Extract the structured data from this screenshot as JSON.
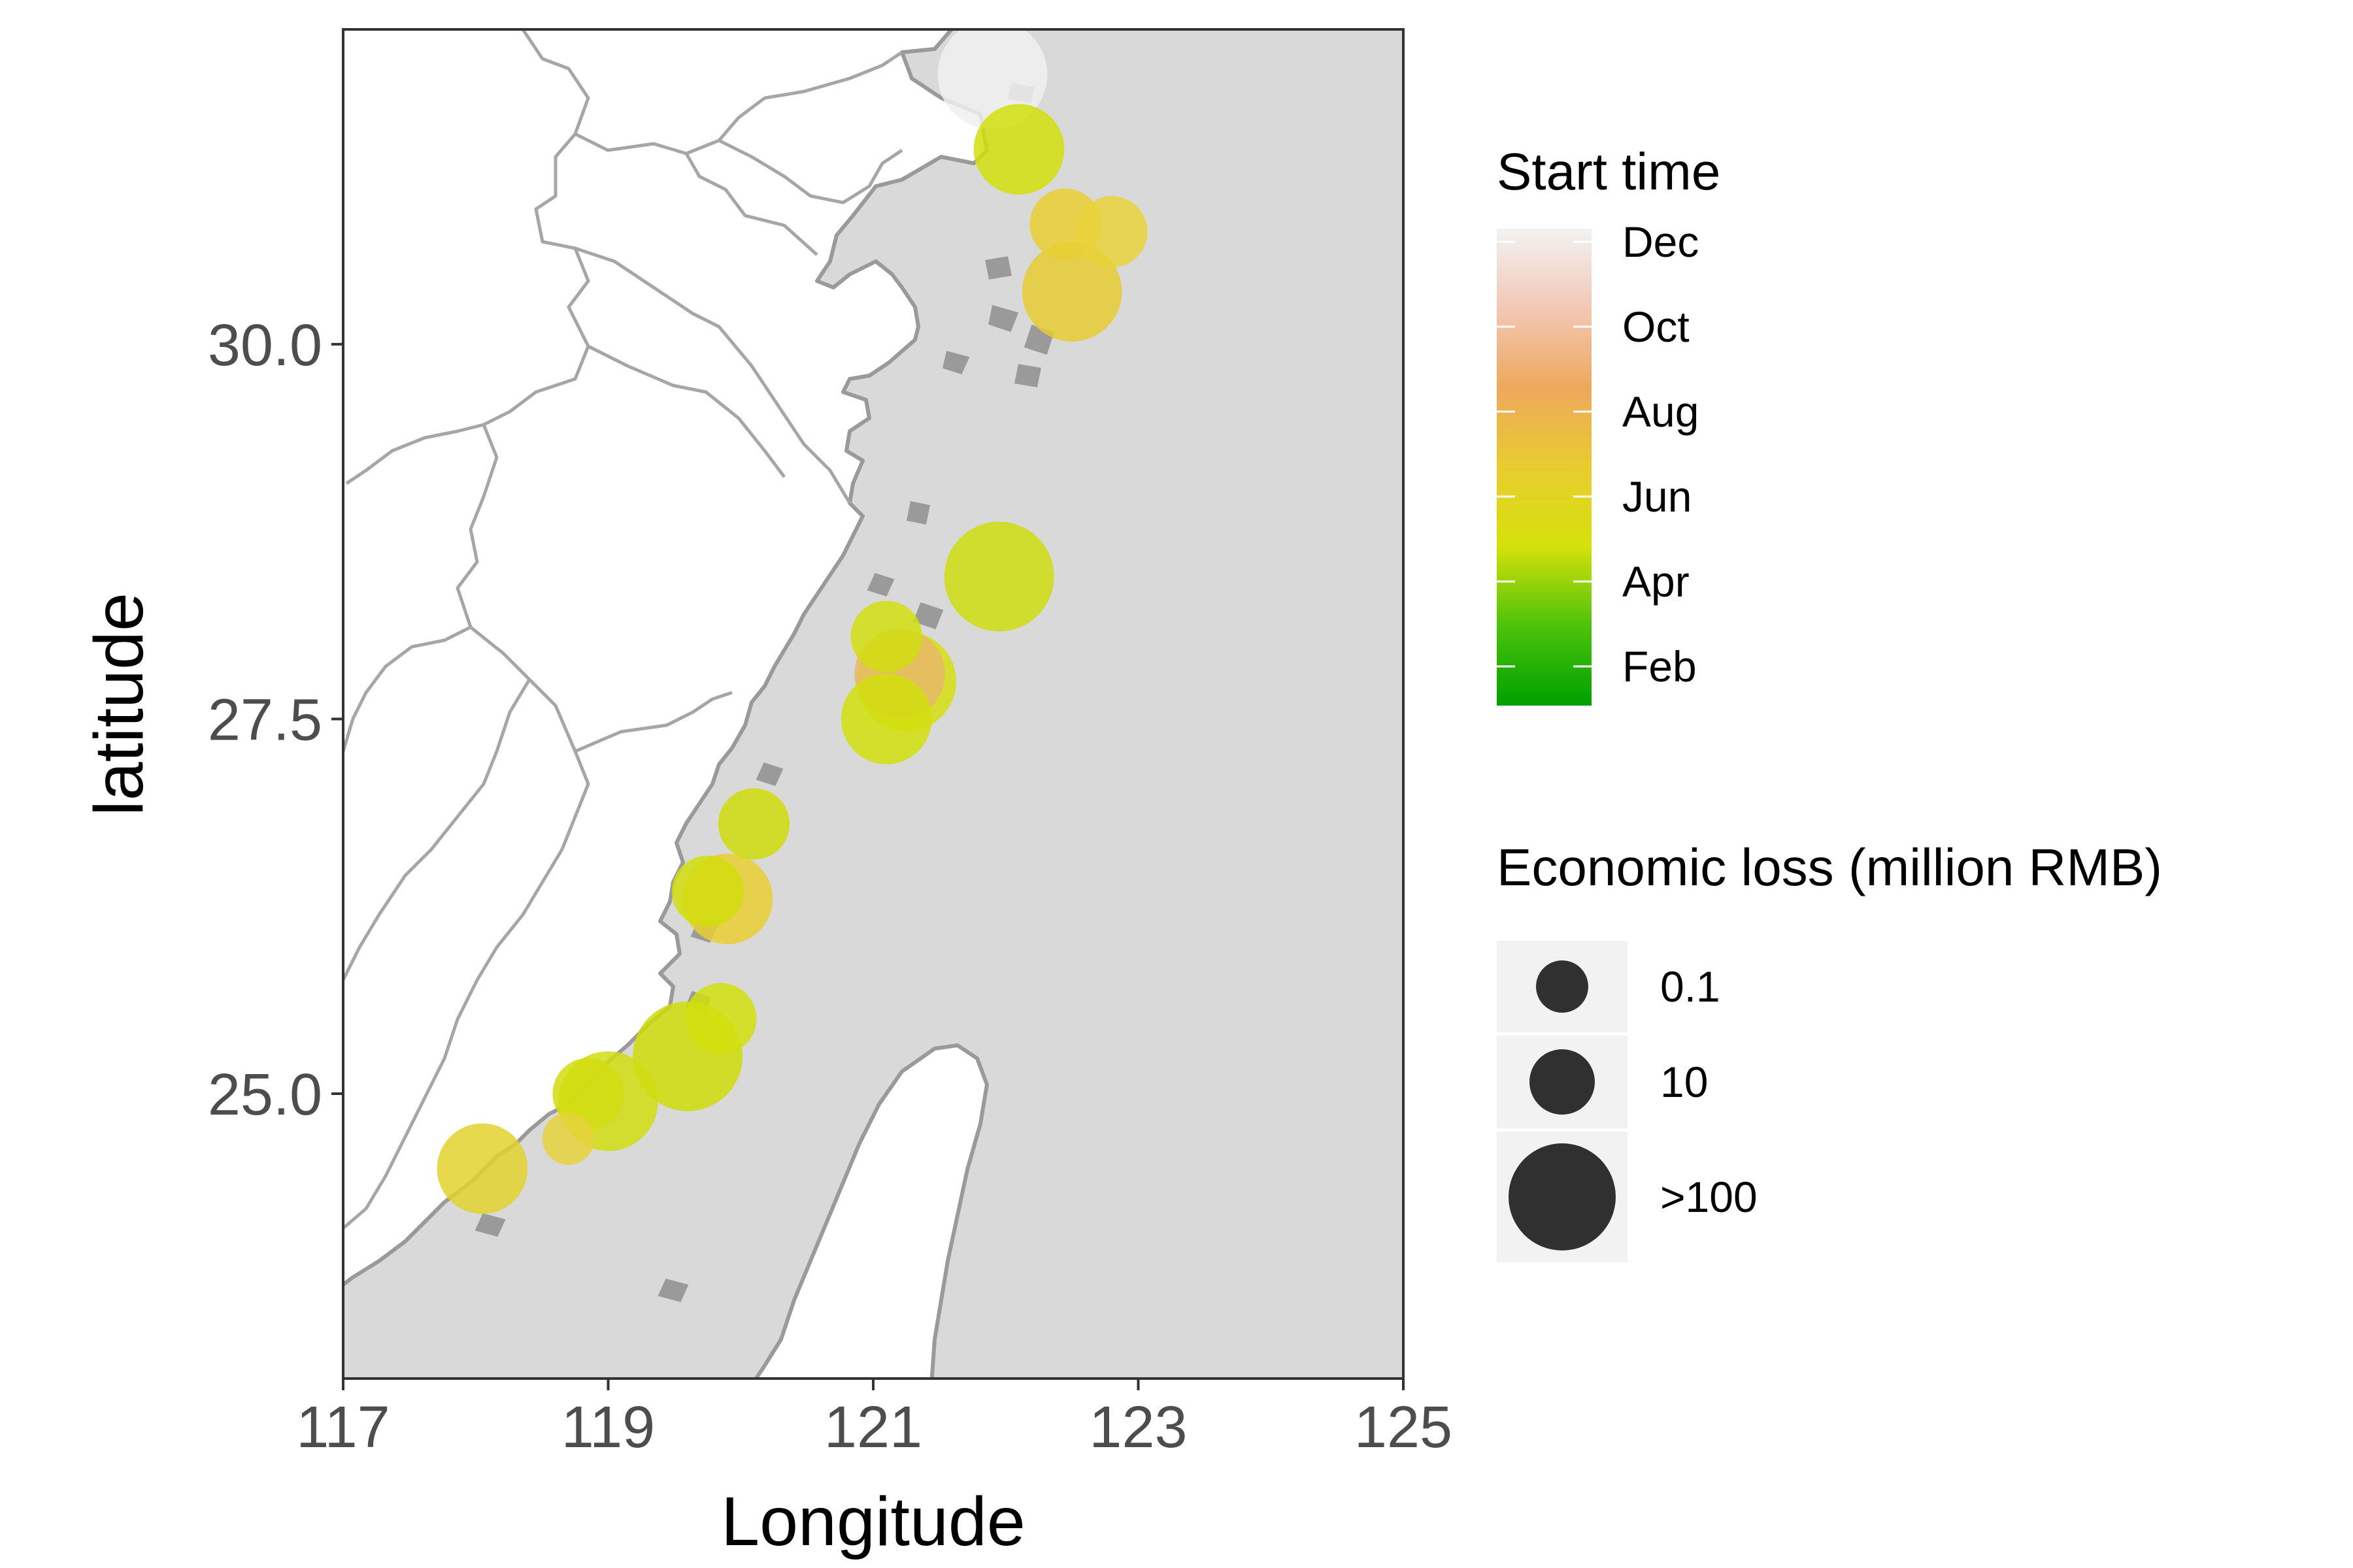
{
  "chart_data": {
    "type": "scatter",
    "map_type": "bubble map",
    "xlabel": "Longitude",
    "ylabel": "latitude",
    "xlim": [
      117,
      125
    ],
    "ylim": [
      23.1,
      32.1
    ],
    "x_ticks": [
      117,
      119,
      121,
      123,
      125
    ],
    "y_ticks": [
      25.0,
      27.5,
      30.0
    ],
    "y_tick_labels": [
      "25.0",
      "27.5",
      "30.0"
    ],
    "colors": {
      "land": "#ffffff",
      "sea": "#d9d9d9",
      "coastline": "#9a9a9a",
      "province_border": "#a6a6a6",
      "legend_key_bg": "#f2f2f2",
      "size_key": "#303030"
    },
    "color_legend": {
      "title": "Start time",
      "labels": [
        "Dec",
        "Oct",
        "Aug",
        "Jun",
        "Apr",
        "Feb"
      ],
      "gradient": [
        "#00a000",
        "#4cc20a",
        "#d5e10a",
        "#e8cc30",
        "#eea85c",
        "#f2c8b6",
        "#f2f2f2"
      ]
    },
    "size_legend": {
      "title": "Economic loss (million RMB)",
      "labels": [
        "0.1",
        "10",
        ">100"
      ],
      "values": [
        0.1,
        10,
        100
      ]
    },
    "points": [
      {
        "lon": 121.9,
        "lat": 31.8,
        "loss": 100,
        "start": "Dec",
        "color": "#f0f0f0"
      },
      {
        "lon": 122.1,
        "lat": 31.3,
        "loss": 10,
        "start": "Apr",
        "color": "#d2df0c"
      },
      {
        "lon": 122.45,
        "lat": 30.8,
        "loss": 1,
        "start": "Jun",
        "color": "#e9cf32"
      },
      {
        "lon": 122.8,
        "lat": 30.75,
        "loss": 1,
        "start": "Jun",
        "color": "#e9d23a"
      },
      {
        "lon": 122.5,
        "lat": 30.35,
        "loss": 30,
        "start": "Jun",
        "color": "#e6cb32"
      },
      {
        "lon": 121.95,
        "lat": 28.45,
        "loss": 100,
        "start": "Apr",
        "color": "#cfdd0f"
      },
      {
        "lon": 121.1,
        "lat": 28.05,
        "loss": 1,
        "start": "Apr",
        "color": "#d1de10"
      },
      {
        "lon": 121.2,
        "lat": 27.8,
        "loss": 10,
        "start": "Aug",
        "color": "#e8b867"
      },
      {
        "lon": 121.25,
        "lat": 27.75,
        "loss": 30,
        "start": "Apr",
        "color": "#d5de12"
      },
      {
        "lon": 121.1,
        "lat": 27.5,
        "loss": 10,
        "start": "Apr",
        "color": "#d2df0c"
      },
      {
        "lon": 120.1,
        "lat": 26.8,
        "loss": 1,
        "start": "Apr",
        "color": "#cfdc0a"
      },
      {
        "lon": 119.9,
        "lat": 26.3,
        "loss": 10,
        "start": "Jun",
        "color": "#e8ce33"
      },
      {
        "lon": 119.75,
        "lat": 26.35,
        "loss": 1,
        "start": "Apr",
        "color": "#d1dd0c"
      },
      {
        "lon": 119.85,
        "lat": 25.5,
        "loss": 1,
        "start": "Apr",
        "color": "#d2df0c"
      },
      {
        "lon": 119.6,
        "lat": 25.25,
        "loss": 100,
        "start": "Apr",
        "color": "#cedc08"
      },
      {
        "lon": 119.0,
        "lat": 24.95,
        "loss": 30,
        "start": "Apr",
        "color": "#d0dd10"
      },
      {
        "lon": 118.85,
        "lat": 25.0,
        "loss": 1,
        "start": "Apr",
        "color": "#d2dd10"
      },
      {
        "lon": 118.7,
        "lat": 24.7,
        "loss": 0.1,
        "start": "Jun",
        "color": "#e6d23c"
      },
      {
        "lon": 118.05,
        "lat": 24.5,
        "loss": 10,
        "start": "Jun",
        "color": "#e2d22e"
      }
    ]
  }
}
